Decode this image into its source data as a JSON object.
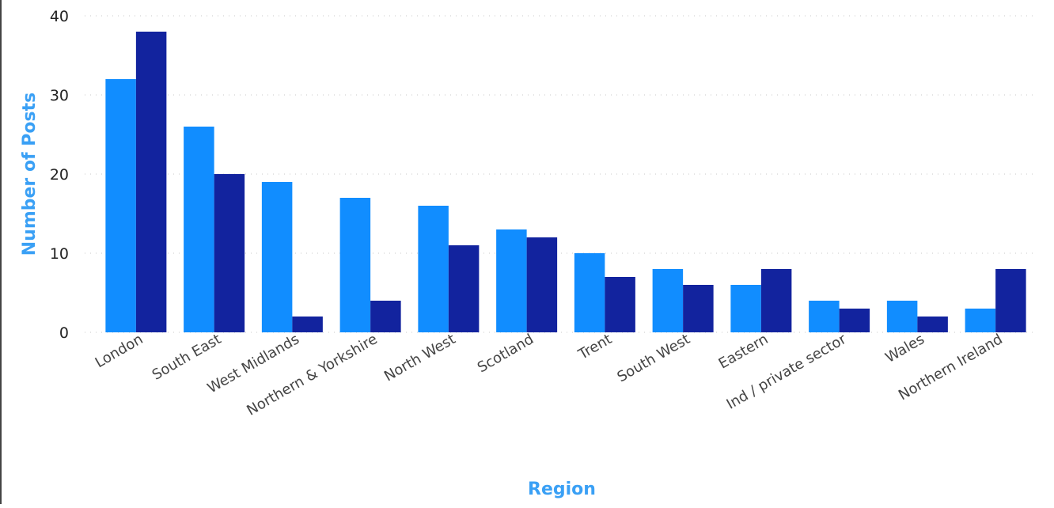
{
  "chart_data": {
    "type": "bar",
    "title": "",
    "xlabel": "Region",
    "ylabel": "Number of Posts",
    "ylim": [
      0,
      40
    ],
    "yticks": [
      0,
      10,
      20,
      30,
      40
    ],
    "grid": true,
    "legend": "none",
    "categories": [
      "London",
      "South East",
      "West Midlands",
      "Northern & Yorkshire",
      "North West",
      "Scotland",
      "Trent",
      "South West",
      "Eastern",
      "Ind / private sector",
      "Wales",
      "Northern Ireland"
    ],
    "series": [
      {
        "color": "#118dff",
        "values": [
          32,
          26,
          19,
          17,
          16,
          13,
          10,
          8,
          6,
          4,
          4,
          3
        ]
      },
      {
        "color": "#12239e",
        "values": [
          38,
          20,
          2,
          4,
          11,
          12,
          7,
          6,
          8,
          3,
          2,
          8
        ]
      }
    ]
  }
}
